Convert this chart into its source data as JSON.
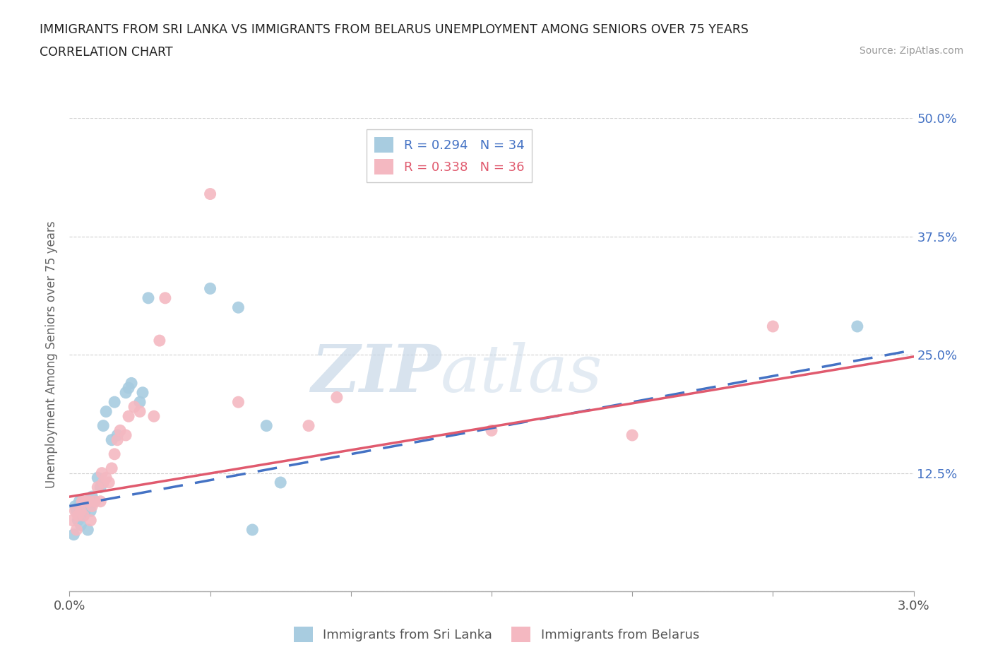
{
  "title_line1": "IMMIGRANTS FROM SRI LANKA VS IMMIGRANTS FROM BELARUS UNEMPLOYMENT AMONG SENIORS OVER 75 YEARS",
  "title_line2": "CORRELATION CHART",
  "source": "Source: ZipAtlas.com",
  "ylabel": "Unemployment Among Seniors over 75 years",
  "xlim": [
    0.0,
    0.03
  ],
  "ylim": [
    0.0,
    0.5
  ],
  "xticks": [
    0.0,
    0.005,
    0.01,
    0.015,
    0.02,
    0.025,
    0.03
  ],
  "xticklabels": [
    "0.0%",
    "",
    "",
    "",
    "",
    "",
    "3.0%"
  ],
  "yticks": [
    0.0,
    0.125,
    0.25,
    0.375,
    0.5
  ],
  "yticklabels": [
    "",
    "12.5%",
    "25.0%",
    "37.5%",
    "50.0%"
  ],
  "sri_lanka_color": "#a8cce0",
  "belarus_color": "#f4b8c1",
  "sri_lanka_line_color": "#4472c4",
  "belarus_line_color": "#e05a6e",
  "R_sri_lanka": 0.294,
  "N_sri_lanka": 34,
  "R_belarus": 0.338,
  "N_belarus": 36,
  "sri_lanka_x": [
    0.00015,
    0.0002,
    0.00025,
    0.0003,
    0.00035,
    0.0004,
    0.00045,
    0.0005,
    0.00055,
    0.0006,
    0.00065,
    0.0007,
    0.00075,
    0.0008,
    0.0009,
    0.001,
    0.0011,
    0.0012,
    0.0013,
    0.0015,
    0.0016,
    0.0017,
    0.002,
    0.0021,
    0.0022,
    0.0025,
    0.0026,
    0.0028,
    0.005,
    0.006,
    0.0065,
    0.007,
    0.0075,
    0.028
  ],
  "sri_lanka_y": [
    0.06,
    0.09,
    0.085,
    0.075,
    0.095,
    0.07,
    0.095,
    0.08,
    0.085,
    0.095,
    0.065,
    0.09,
    0.085,
    0.1,
    0.095,
    0.12,
    0.11,
    0.175,
    0.19,
    0.16,
    0.2,
    0.165,
    0.21,
    0.215,
    0.22,
    0.2,
    0.21,
    0.31,
    0.32,
    0.3,
    0.065,
    0.175,
    0.115,
    0.28
  ],
  "belarus_x": [
    0.0001,
    0.0002,
    0.00025,
    0.0003,
    0.0004,
    0.00045,
    0.0005,
    0.0006,
    0.0007,
    0.00075,
    0.0008,
    0.0009,
    0.001,
    0.0011,
    0.00115,
    0.0012,
    0.0013,
    0.0014,
    0.0015,
    0.0016,
    0.0017,
    0.0018,
    0.002,
    0.0021,
    0.0023,
    0.0025,
    0.003,
    0.0032,
    0.0034,
    0.005,
    0.006,
    0.0085,
    0.0095,
    0.015,
    0.02,
    0.025
  ],
  "belarus_y": [
    0.075,
    0.085,
    0.065,
    0.08,
    0.085,
    0.095,
    0.08,
    0.095,
    0.095,
    0.075,
    0.09,
    0.095,
    0.11,
    0.095,
    0.125,
    0.115,
    0.12,
    0.115,
    0.13,
    0.145,
    0.16,
    0.17,
    0.165,
    0.185,
    0.195,
    0.19,
    0.185,
    0.265,
    0.31,
    0.42,
    0.2,
    0.175,
    0.205,
    0.17,
    0.165,
    0.28
  ],
  "watermark_part1": "ZIP",
  "watermark_part2": "atlas",
  "background_color": "#ffffff",
  "grid_color": "#d0d0d0",
  "right_tick_color": "#4472c4"
}
